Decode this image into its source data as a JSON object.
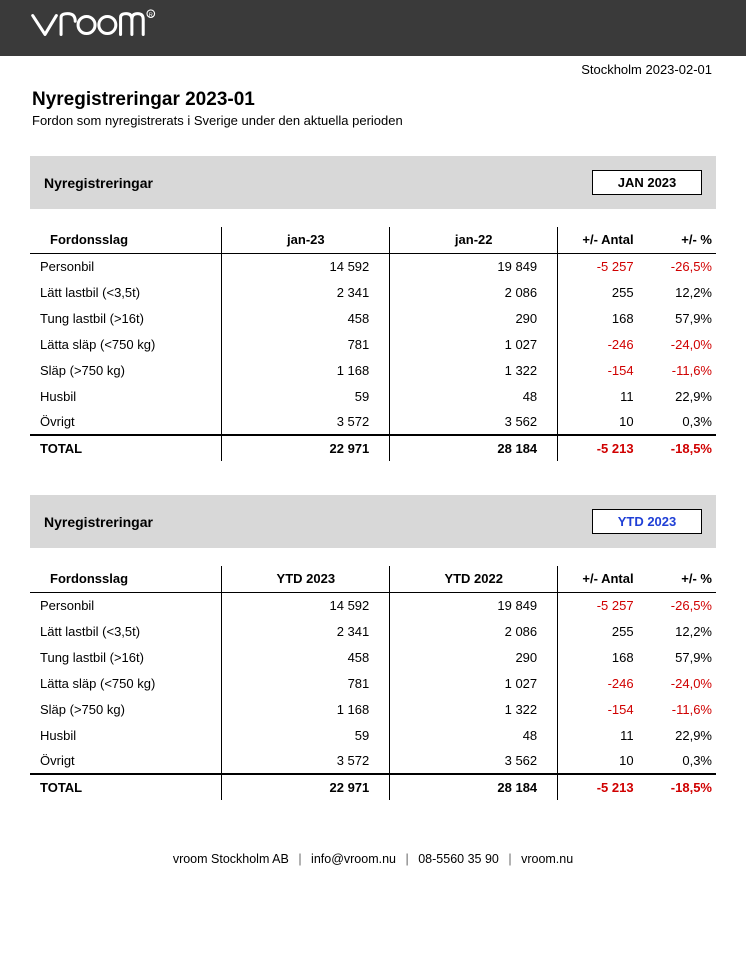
{
  "header": {
    "date_line": "Stockholm 2023-02-01",
    "title": "Nyregistreringar 2023-01",
    "subtitle": "Fordon som nyregistrerats i Sverige under den aktuella perioden"
  },
  "sections": [
    {
      "heading": "Nyregistreringar",
      "badge": "JAN 2023",
      "badge_color": "black",
      "columns": {
        "cat": "Fordonsslag",
        "a": "jan-23",
        "b": "jan-22",
        "delta": "+/- Antal",
        "pct": "+/- %"
      },
      "rows": [
        {
          "cat": "Personbil",
          "a": "14 592",
          "b": "19 849",
          "delta": "-5 257",
          "pct": "-26,5%",
          "neg": true
        },
        {
          "cat": "Lätt lastbil (<3,5t)",
          "a": "2 341",
          "b": "2 086",
          "delta": "255",
          "pct": "12,2%",
          "neg": false
        },
        {
          "cat": "Tung lastbil (>16t)",
          "a": "458",
          "b": "290",
          "delta": "168",
          "pct": "57,9%",
          "neg": false
        },
        {
          "cat": "Lätta släp (<750 kg)",
          "a": "781",
          "b": "1 027",
          "delta": "-246",
          "pct": "-24,0%",
          "neg": true
        },
        {
          "cat": "Släp (>750 kg)",
          "a": "1 168",
          "b": "1 322",
          "delta": "-154",
          "pct": "-11,6%",
          "neg": true
        },
        {
          "cat": "Husbil",
          "a": "59",
          "b": "48",
          "delta": "11",
          "pct": "22,9%",
          "neg": false
        },
        {
          "cat": "Övrigt",
          "a": "3 572",
          "b": "3 562",
          "delta": "10",
          "pct": "0,3%",
          "neg": false
        }
      ],
      "total": {
        "cat": "TOTAL",
        "a": "22 971",
        "b": "28 184",
        "delta": "-5 213",
        "pct": "-18,5%",
        "neg": true
      }
    },
    {
      "heading": "Nyregistreringar",
      "badge": "YTD 2023",
      "badge_color": "blue",
      "columns": {
        "cat": "Fordonsslag",
        "a": "YTD 2023",
        "b": "YTD 2022",
        "delta": "+/- Antal",
        "pct": "+/- %"
      },
      "rows": [
        {
          "cat": "Personbil",
          "a": "14 592",
          "b": "19 849",
          "delta": "-5 257",
          "pct": "-26,5%",
          "neg": true
        },
        {
          "cat": "Lätt lastbil (<3,5t)",
          "a": "2 341",
          "b": "2 086",
          "delta": "255",
          "pct": "12,2%",
          "neg": false
        },
        {
          "cat": "Tung lastbil (>16t)",
          "a": "458",
          "b": "290",
          "delta": "168",
          "pct": "57,9%",
          "neg": false
        },
        {
          "cat": "Lätta släp (<750 kg)",
          "a": "781",
          "b": "1 027",
          "delta": "-246",
          "pct": "-24,0%",
          "neg": true
        },
        {
          "cat": "Släp (>750 kg)",
          "a": "1 168",
          "b": "1 322",
          "delta": "-154",
          "pct": "-11,6%",
          "neg": true
        },
        {
          "cat": "Husbil",
          "a": "59",
          "b": "48",
          "delta": "11",
          "pct": "22,9%",
          "neg": false
        },
        {
          "cat": "Övrigt",
          "a": "3 572",
          "b": "3 562",
          "delta": "10",
          "pct": "0,3%",
          "neg": false
        }
      ],
      "total": {
        "cat": "TOTAL",
        "a": "22 971",
        "b": "28 184",
        "delta": "-5 213",
        "pct": "-18,5%",
        "neg": true
      }
    }
  ],
  "footer": {
    "company": "vroom Stockholm AB",
    "email": "info@vroom.nu",
    "phone": "08-5560 35 90",
    "url": "vroom.nu"
  },
  "colors": {
    "header_bg": "#3a3a3a",
    "section_bg": "#d8d8d8",
    "negative": "#d00000",
    "badge_blue": "#1f3fd6",
    "text": "#000000",
    "background": "#ffffff"
  }
}
